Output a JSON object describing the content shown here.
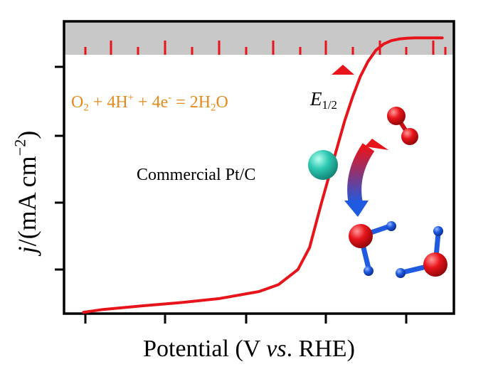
{
  "chart_data": {
    "type": "line",
    "title": "",
    "xlabel": {
      "prefix": "Potential (V ",
      "italic": "vs",
      "suffix": ". RHE)"
    },
    "ylabel": {
      "italic": "j",
      "rest": "/(mA cm",
      "sup": "−2",
      "close": ")"
    },
    "x_ticks_shown": true,
    "y_ticks_shown": true,
    "tick_labels_shown": false,
    "xlim": [
      0,
      1
    ],
    "ylim": [
      -1,
      0.06
    ],
    "series": [
      {
        "color": "#e8141b",
        "x": [
          0.05,
          0.1,
          0.2,
          0.3,
          0.4,
          0.5,
          0.55,
          0.6,
          0.63,
          0.66,
          0.68,
          0.7,
          0.72,
          0.74,
          0.76,
          0.78,
          0.8,
          0.82,
          0.84,
          0.86,
          0.88,
          0.9,
          0.93,
          0.97
        ],
        "y": [
          -0.995,
          -0.985,
          -0.972,
          -0.96,
          -0.945,
          -0.92,
          -0.895,
          -0.84,
          -0.76,
          -0.6,
          -0.5,
          -0.4,
          -0.3,
          -0.215,
          -0.14,
          -0.085,
          -0.045,
          -0.022,
          -0.01,
          -0.004,
          -0.001,
          0.0,
          0.0,
          0.0
        ]
      }
    ],
    "annotations": {
      "reaction": {
        "o": "O",
        "s1": "2",
        "mid": " + 4H",
        "sup1": "+",
        "mid2": " + 4e",
        "sup2": "-",
        "mid3": " = 2H",
        "s2": "2",
        "tail": "O",
        "color": "#e58a1e"
      },
      "catalyst": "Commercial Pt/C",
      "half_wave": {
        "main": "E",
        "sub": "1/2"
      }
    },
    "colors": {
      "curve": "#e8141b",
      "top_band": "#c8c8c8",
      "band_ticks": "#e8141b",
      "pt_sphere": "#2ec9b3",
      "oxygen": "#e8141b",
      "hydrogen": "#1f5ae0",
      "arrow_start": "#e8141b",
      "arrow_end": "#1f5ae0"
    }
  }
}
